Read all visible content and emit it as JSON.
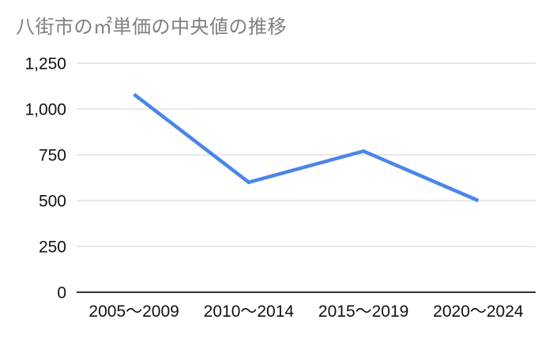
{
  "chart": {
    "title": "八街市の㎡単価の中央値の推移"
  },
  "chart_data": {
    "type": "line",
    "title": "八街市の㎡単価の中央値の推移",
    "categories": [
      "2005〜2009",
      "2010〜2014",
      "2015〜2019",
      "2020〜2024"
    ],
    "values": [
      1080,
      600,
      770,
      500
    ],
    "xlabel": "",
    "ylabel": "",
    "ylim": [
      0,
      1250
    ],
    "yticks": [
      0,
      250,
      500,
      750,
      1000,
      1250
    ],
    "ytick_labels": [
      "0",
      "250",
      "500",
      "750",
      "1,000",
      "1,250"
    ],
    "grid": true,
    "legend": "none",
    "colors": {
      "line": "#4a86e8",
      "title_text": "#7f7f7f",
      "axis_text": "#111111",
      "gridline": "#e0e0e0",
      "baseline": "#333333",
      "background": "#ffffff"
    },
    "line_width": 4.5
  }
}
